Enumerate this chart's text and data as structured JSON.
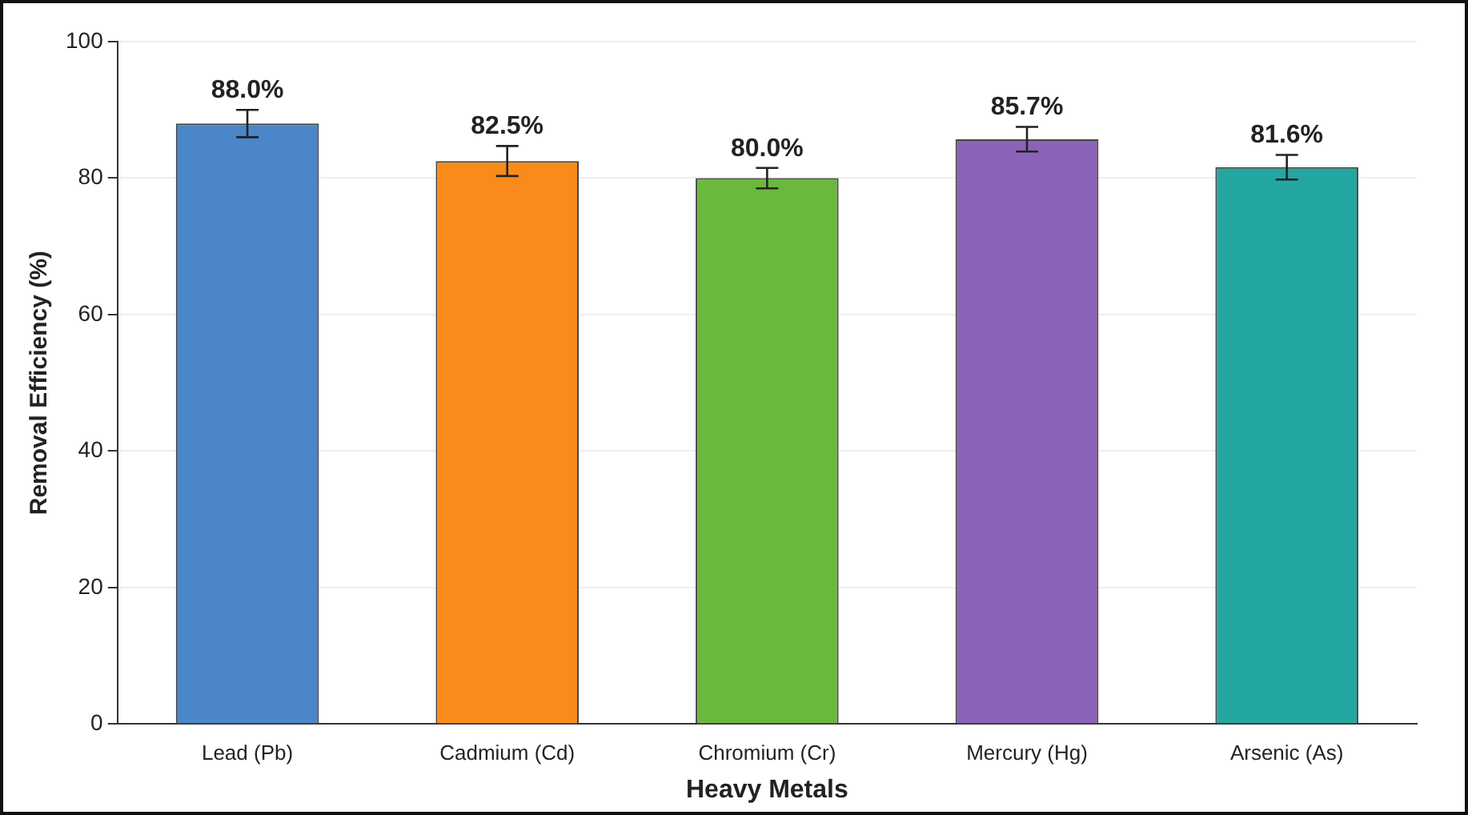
{
  "chart_data": {
    "type": "bar",
    "xlabel": "Heavy Metals",
    "ylabel": "Removal Efficiency (%)",
    "categories": [
      "Lead (Pb)",
      "Cadmium (Cd)",
      "Chromium (Cr)",
      "Mercury (Hg)",
      "Arsenic (As)"
    ],
    "values": [
      88.0,
      82.5,
      80.0,
      85.7,
      81.6
    ],
    "errors": [
      2.0,
      2.2,
      1.5,
      1.8,
      1.8
    ],
    "value_labels": [
      "88.0%",
      "82.5%",
      "80.0%",
      "85.7%",
      "81.6%"
    ],
    "colors": [
      "#4a86c8",
      "#f98b1a",
      "#6bb83e",
      "#8a63b8",
      "#24a6a0"
    ],
    "ylim": [
      0,
      100
    ],
    "yticks": [
      0,
      20,
      40,
      60,
      80,
      100
    ],
    "grid": "y",
    "legend": false
  }
}
